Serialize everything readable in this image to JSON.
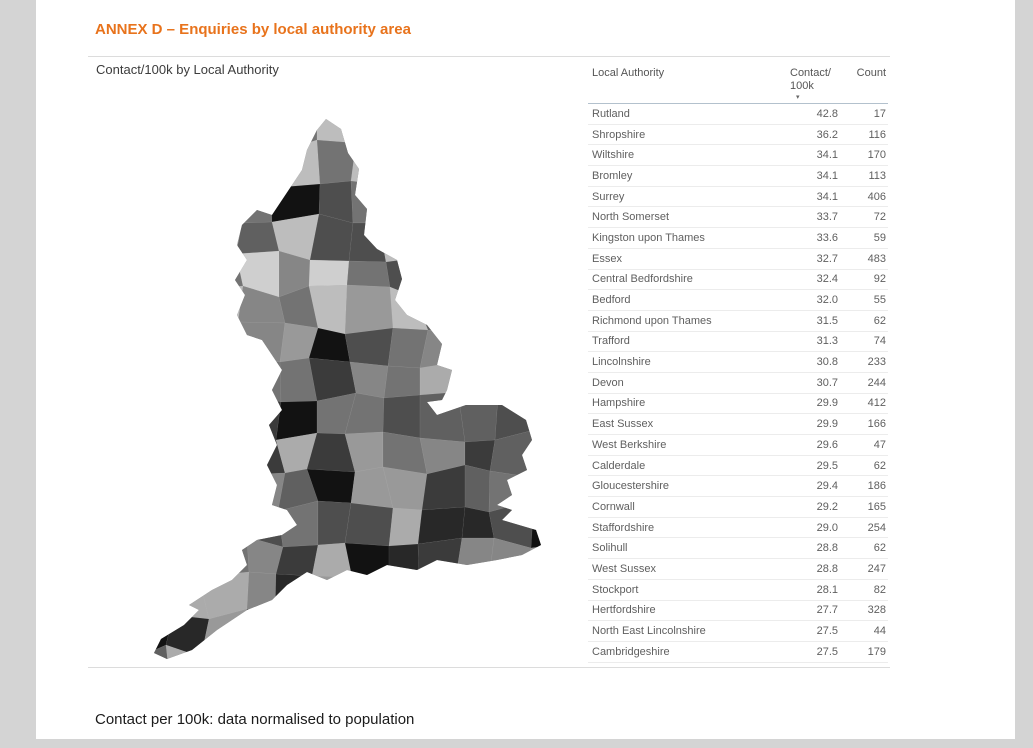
{
  "accent_color": "#e8731c",
  "page": {
    "heading": "ANNEX D – Enquiries by local authority area",
    "caption": "Contact per 100k: data normalised to population"
  },
  "visual": {
    "title": "Contact/100k by Local Authority"
  },
  "table": {
    "col_authority": "Local Authority",
    "col_per100k": "Contact/ 100k",
    "col_count": "Count",
    "sort_icon_glyph": "▾"
  },
  "chart_data": {
    "type": "table",
    "title": "Contact/100k by Local Authority",
    "columns": [
      "Local Authority",
      "Contact/100k",
      "Count"
    ],
    "rows": [
      [
        "Rutland",
        "42.8",
        17
      ],
      [
        "Shropshire",
        "36.2",
        116
      ],
      [
        "Wiltshire",
        "34.1",
        170
      ],
      [
        "Bromley",
        "34.1",
        113
      ],
      [
        "Surrey",
        "34.1",
        406
      ],
      [
        "North Somerset",
        "33.7",
        72
      ],
      [
        "Kingston upon Thames",
        "33.6",
        59
      ],
      [
        "Essex",
        "32.7",
        483
      ],
      [
        "Central Bedfordshire",
        "32.4",
        92
      ],
      [
        "Bedford",
        "32.0",
        55
      ],
      [
        "Richmond upon Thames",
        "31.5",
        62
      ],
      [
        "Trafford",
        "31.3",
        74
      ],
      [
        "Lincolnshire",
        "30.8",
        233
      ],
      [
        "Devon",
        "30.7",
        244
      ],
      [
        "Hampshire",
        "29.9",
        412
      ],
      [
        "East Sussex",
        "29.9",
        166
      ],
      [
        "West Berkshire",
        "29.6",
        47
      ],
      [
        "Calderdale",
        "29.5",
        62
      ],
      [
        "Gloucestershire",
        "29.4",
        186
      ],
      [
        "Cornwall",
        "29.2",
        165
      ],
      [
        "Staffordshire",
        "29.0",
        254
      ],
      [
        "Solihull",
        "28.8",
        62
      ],
      [
        "West Sussex",
        "28.8",
        247
      ],
      [
        "Stockport",
        "28.1",
        82
      ],
      [
        "Hertfordshire",
        "27.7",
        328
      ],
      [
        "North East Lincolnshire",
        "27.5",
        44
      ],
      [
        "Cambridgeshire",
        "27.5",
        179
      ]
    ],
    "map_visual": "grayscale choropleth map of England local authority areas"
  },
  "map": {
    "palette": [
      "#cfcfcf",
      "#bdbdbd",
      "#ababab",
      "#999999",
      "#868686",
      "#737373",
      "#606060",
      "#4e4e4e",
      "#3b3b3b",
      "#282828",
      "#121212"
    ]
  }
}
